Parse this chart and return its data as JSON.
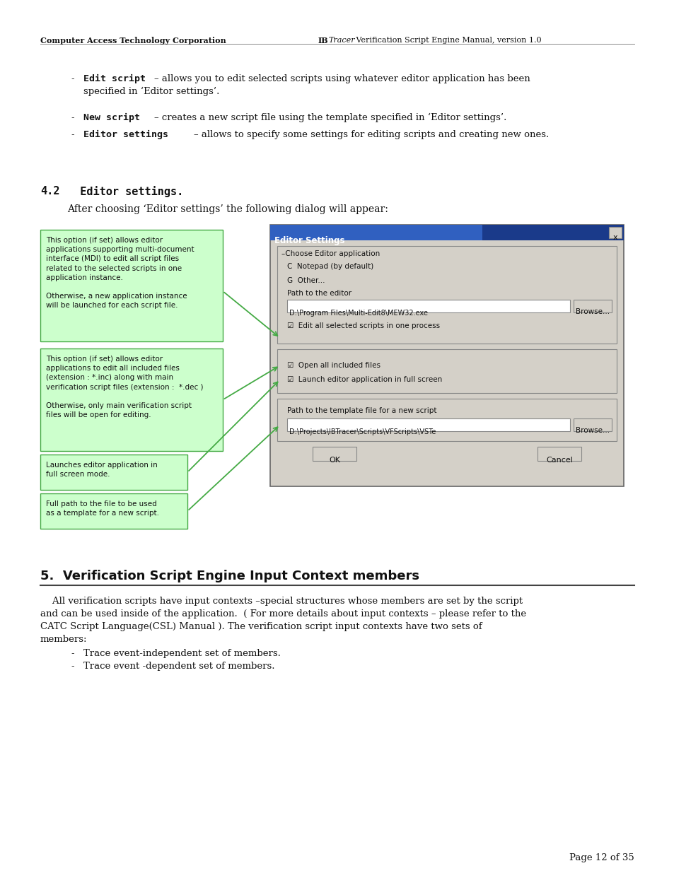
{
  "page_width": 9.54,
  "page_height": 12.35,
  "dpi": 100,
  "bg_color": "#ffffff",
  "header_left": "Computer Access Technology Corporation",
  "header_right_pre": "IB",
  "header_right_italic": "Tracer",
  "header_right_post": " Verification Script Engine Manual, version 1.0",
  "section42_heading_num": "4.2",
  "section42_heading_txt": "  Editor settings.",
  "section42_sub": "After choosing ‘Editor settings’ the following dialog will appear:",
  "bullet1_code": "Edit script",
  "bullet1_text": " – allows you to edit selected scripts using whatever editor application has been\n             specified in ‘Editor settings’.",
  "bullet2_code": "New script",
  "bullet2_text": " – creates a new script file using the template specified in ‘Editor settings’.",
  "bullet3_code": "Editor settings",
  "bullet3_text": " – allows to specify some settings for editing scripts and creating new ones.",
  "callout1_text": "This option (if set) allows editor\napplications supporting multi-document\ninterface (MDI) to edit all script files\nrelated to the selected scripts in one\napplication instance.\n\nOtherwise, a new application instance\nwill be launched for each script file.",
  "callout2_text": "This option (if set) allows editor\napplications to edit all included files\n(extension : *.inc) along with main\nverification script files (extension :  *.dec )\n\nOtherwise, only main verification script\nfiles will be open for editing.",
  "callout3_text": "Launches editor application in\nfull screen mode.",
  "callout4_text": "Full path to the file to be used\nas a template for a new script.",
  "callout_bg": "#ccffcc",
  "callout_edge": "#44aa44",
  "dialog_title": "Editor Settings",
  "dialog_bg": "#d4d0c8",
  "dialog_titlebar_bg": "#0a246a",
  "dialog_border": "#808080",
  "grp1_label": "Choose Editor application",
  "radio1": "C  Notepad (by default)",
  "radio2": "G  Other...",
  "path_label": "Path to the editor",
  "path_text": "D:\\Program Files\\Multi-Edit8\\MEW32.exe",
  "browse_text": "Browse...",
  "check1": "☑  Edit all selected scripts in one process",
  "check2": "☑  Open all included files",
  "check3": "☑  Launch editor application in full screen",
  "grp3_label": "Path to the template file for a new script",
  "tpath_text": "D:\\Projects\\IBTracer\\Scripts\\VFScripts\\VSTe",
  "ok_text": "OK",
  "cancel_text": "Cancel",
  "sec5_title": "5.  Verification Script Engine Input Context members",
  "sec5_para1": "    All verification scripts have input contexts –special structures whose members are set by the script",
  "sec5_para2": "and can be used inside of the application.  ( For more details about input contexts – please refer to the",
  "sec5_para3": "CATC Script Language(CSL) Manual ). The verification script input contexts have two sets of",
  "sec5_para4": "members:",
  "sec5_b1": "Trace event-independent set of members.",
  "sec5_b2": "Trace event -dependent set of members.",
  "page_num": "Page 12 of 35"
}
